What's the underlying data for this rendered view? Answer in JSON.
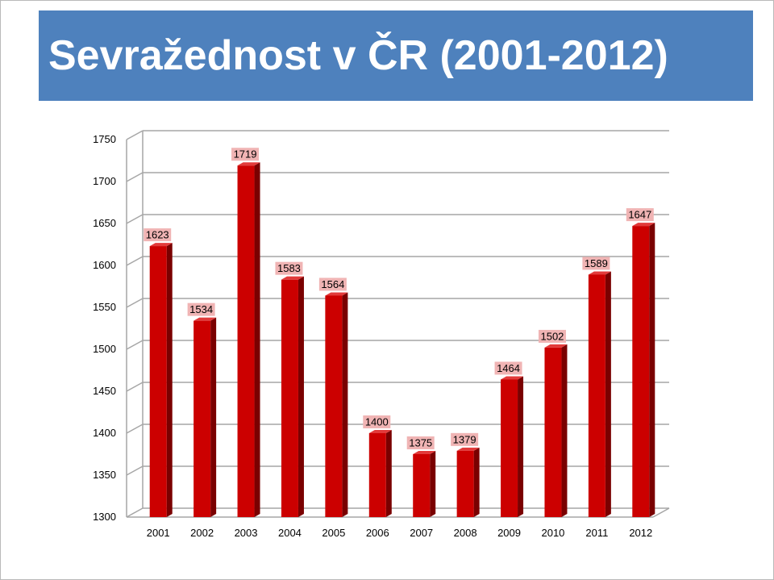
{
  "slide": {
    "title": "Sevražednost v ČR (2001-2012)"
  },
  "chart_data": {
    "type": "bar",
    "title": "Sevražednost v ČR (2001-2012)",
    "xlabel": "",
    "ylabel": "",
    "categories": [
      "2001",
      "2002",
      "2003",
      "2004",
      "2005",
      "2006",
      "2007",
      "2008",
      "2009",
      "2010",
      "2011",
      "2012"
    ],
    "values": [
      1623,
      1534,
      1719,
      1583,
      1564,
      1400,
      1375,
      1379,
      1464,
      1502,
      1589,
      1647
    ],
    "ylim": [
      1300,
      1750
    ],
    "yticks": [
      1300,
      1350,
      1400,
      1450,
      1500,
      1550,
      1600,
      1650,
      1700,
      1750
    ],
    "grid": true,
    "legend": "none",
    "colors": {
      "bar": "#cc0000",
      "bar_side": "#7a0000",
      "bar_top": "#e23a3a",
      "label_bg": "#f0b4b4",
      "grid": "#a6a6a6"
    }
  }
}
